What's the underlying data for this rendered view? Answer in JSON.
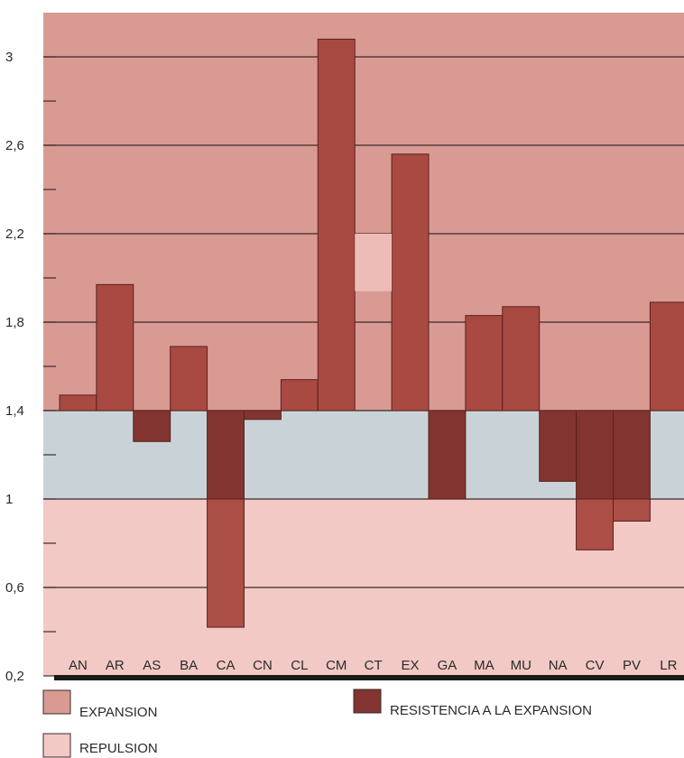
{
  "chart_data": {
    "type": "bar",
    "title": "",
    "xlabel": "",
    "ylabel": "",
    "ylim": [
      0.2,
      3.2
    ],
    "baseline": 1.4,
    "yticks": [
      {
        "value": 3,
        "label": "3"
      },
      {
        "value": 2.6,
        "label": "2,6"
      },
      {
        "value": 2.2,
        "label": "2,2"
      },
      {
        "value": 1.8,
        "label": "1,8"
      },
      {
        "value": 1.4,
        "label": "1,4"
      },
      {
        "value": 1,
        "label": "1"
      },
      {
        "value": 0.6,
        "label": "0,6"
      },
      {
        "value": 0.2,
        "label": "0,2"
      }
    ],
    "minor_ticks": [
      2.8,
      2.4,
      2.0,
      1.6,
      1.2,
      0.8,
      0.4
    ],
    "categories": [
      "AN",
      "AR",
      "AS",
      "BA",
      "CA",
      "CN",
      "CL",
      "CM",
      "CT",
      "EX",
      "GA",
      "MA",
      "MU",
      "NA",
      "CV",
      "PV",
      "LR"
    ],
    "values": [
      1.47,
      1.97,
      1.26,
      1.69,
      0.42,
      1.36,
      1.54,
      3.08,
      null,
      2.56,
      1.0,
      1.83,
      1.87,
      1.08,
      0.77,
      0.9,
      1.89
    ],
    "highlight": {
      "category": "CT",
      "range": [
        1.94,
        2.2
      ]
    },
    "zones": [
      {
        "from": 1.4,
        "to": 3.2,
        "legend": "EXPANSION",
        "color": "#d99a94"
      },
      {
        "from": 1.0,
        "to": 1.4,
        "legend": "",
        "color": "#c9d3d7"
      },
      {
        "from": 0.2,
        "to": 1.0,
        "legend": "REPULSION",
        "color": "#f2c9c4"
      }
    ],
    "legend": [
      {
        "label": "EXPANSION",
        "color": "#d99a94"
      },
      {
        "label": "RESISTENCIA A LA EXPANSION",
        "color": "#823530"
      },
      {
        "label": "REPULSION",
        "color": "#f2c9c4"
      }
    ],
    "colors": {
      "bar_above_baseline": "#a84a42",
      "bar_below_baseline": "#823530",
      "bar_in_repulsion": "#ab4e46",
      "gridline": "#3a2a28",
      "highlight": "#eebcb7"
    },
    "legend_position": "bottom"
  }
}
